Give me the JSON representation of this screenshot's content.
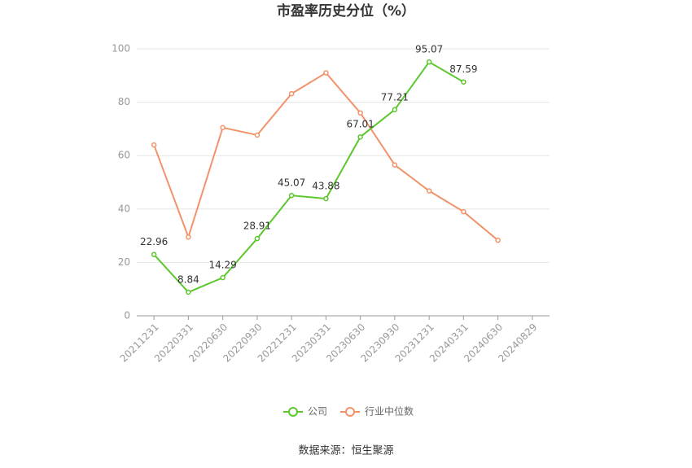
{
  "chart_data": {
    "type": "line",
    "title": "市盈率历史分位（%）",
    "source": "数据来源：恒生聚源",
    "categories": [
      "20211231",
      "20220331",
      "20220630",
      "20220930",
      "20221231",
      "20230331",
      "20230630",
      "20230930",
      "20231231",
      "20240331",
      "20240630",
      "20240829"
    ],
    "series": [
      {
        "name": "公司",
        "color": "#5cc72e",
        "values": [
          22.96,
          8.84,
          14.29,
          28.91,
          45.07,
          43.88,
          67.01,
          77.21,
          95.07,
          87.59,
          null,
          null
        ],
        "show_labels": true
      },
      {
        "name": "行业中位数",
        "color": "#f2926a",
        "values": [
          64,
          29.5,
          70.5,
          67.7,
          83.2,
          91,
          76,
          56.5,
          46.8,
          39,
          28.3,
          null
        ],
        "show_labels": false
      }
    ],
    "ylim": [
      0,
      100
    ],
    "yticks": [
      0,
      20,
      40,
      60,
      80,
      100
    ],
    "grid": true,
    "legend": "bottom"
  }
}
